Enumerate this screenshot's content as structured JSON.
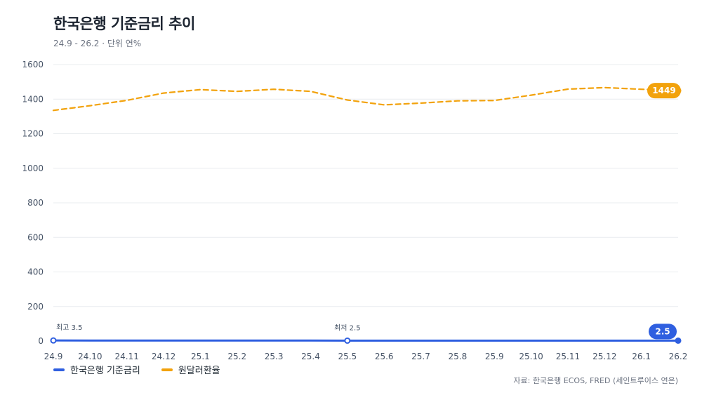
{
  "header": {
    "title": "한국은행 기준금리 추이",
    "subtitle": "24.9 - 26.2 · 단위 연%"
  },
  "footer": {
    "source": "자료: 한국은행 ECOS, FRED (세인트루이스 연은)"
  },
  "colors": {
    "rate": "#2f5fe0",
    "fx": "#f2a20c",
    "grid": "#e9ecef",
    "axis": "#c7ccd3"
  },
  "chart_data": {
    "type": "line",
    "categories": [
      "24.9",
      "24.10",
      "24.11",
      "24.12",
      "25.1",
      "25.2",
      "25.3",
      "25.4",
      "25.5",
      "25.6",
      "25.7",
      "25.8",
      "25.9",
      "25.10",
      "25.11",
      "25.12",
      "26.1",
      "26.2"
    ],
    "ylim": [
      0,
      1600
    ],
    "yticks": [
      0,
      200,
      400,
      600,
      800,
      1000,
      1200,
      1400,
      1600
    ],
    "grid": true,
    "legend_position": "bottom-left",
    "series": [
      {
        "name": "한국은행 기준금리",
        "style": "solid",
        "values": [
          3.5,
          3.25,
          3.0,
          3.0,
          3.0,
          2.75,
          2.75,
          2.75,
          2.5,
          2.5,
          2.5,
          2.5,
          2.5,
          2.5,
          2.5,
          2.5,
          2.5,
          2.5
        ]
      },
      {
        "name": "원달러환율",
        "style": "dashed",
        "values": [
          1335,
          1362,
          1393,
          1435,
          1455,
          1445,
          1457,
          1445,
          1395,
          1367,
          1377,
          1390,
          1392,
          1423,
          1458,
          1467,
          1457,
          1449
        ]
      }
    ],
    "annotations": [
      {
        "label": "최고 3.5",
        "category": "24.9",
        "series": 0
      },
      {
        "label": "최저 2.5",
        "category": "25.5",
        "series": 0
      }
    ],
    "end_labels": [
      {
        "label": "2.5",
        "series": 0
      },
      {
        "label": "1449",
        "series": 1
      }
    ]
  }
}
